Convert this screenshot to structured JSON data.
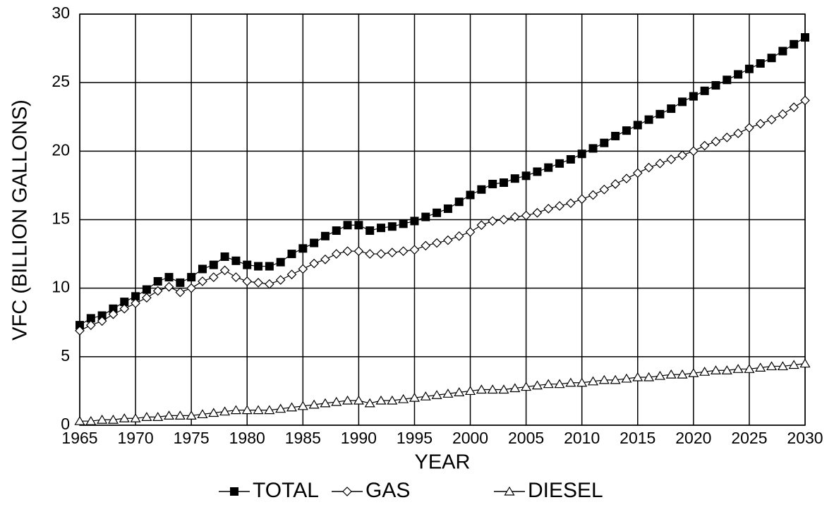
{
  "chart_data": {
    "type": "line",
    "xlabel": "YEAR",
    "ylabel": "VFC (BILLION GALLONS)",
    "x": [
      1965,
      1966,
      1967,
      1968,
      1969,
      1970,
      1971,
      1972,
      1973,
      1974,
      1975,
      1976,
      1977,
      1978,
      1979,
      1980,
      1981,
      1982,
      1983,
      1984,
      1985,
      1986,
      1987,
      1988,
      1989,
      1990,
      1991,
      1992,
      1993,
      1994,
      1995,
      1996,
      1997,
      1998,
      1999,
      2000,
      2001,
      2002,
      2003,
      2004,
      2005,
      2006,
      2007,
      2008,
      2009,
      2010,
      2011,
      2012,
      2013,
      2014,
      2015,
      2016,
      2017,
      2018,
      2019,
      2020,
      2021,
      2022,
      2023,
      2024,
      2025,
      2026,
      2027,
      2028,
      2029,
      2030
    ],
    "series": [
      {
        "name": "TOTAL",
        "color": "#000000",
        "marker": "square",
        "values": [
          7.3,
          7.8,
          8.0,
          8.5,
          9.0,
          9.4,
          9.9,
          10.5,
          10.8,
          10.4,
          10.8,
          11.4,
          11.7,
          12.3,
          12.0,
          11.7,
          11.6,
          11.6,
          11.9,
          12.5,
          12.9,
          13.3,
          13.8,
          14.2,
          14.6,
          14.6,
          14.2,
          14.4,
          14.5,
          14.7,
          14.9,
          15.2,
          15.5,
          15.8,
          16.3,
          16.8,
          17.2,
          17.6,
          17.7,
          18.0,
          18.2,
          18.5,
          18.8,
          19.1,
          19.4,
          19.8,
          20.2,
          20.6,
          21.1,
          21.5,
          21.9,
          22.3,
          22.7,
          23.1,
          23.6,
          24.0,
          24.4,
          24.8,
          25.2,
          25.6,
          26.0,
          26.4,
          26.8,
          27.3,
          27.8,
          28.3
        ]
      },
      {
        "name": "GAS",
        "color": "#000000",
        "marker": "diamond",
        "values": [
          6.9,
          7.3,
          7.6,
          8.1,
          8.5,
          8.9,
          9.3,
          9.8,
          10.1,
          9.7,
          10.0,
          10.5,
          10.8,
          11.3,
          10.8,
          10.5,
          10.4,
          10.3,
          10.6,
          11.0,
          11.4,
          11.8,
          12.1,
          12.5,
          12.7,
          12.7,
          12.5,
          12.5,
          12.6,
          12.7,
          12.8,
          13.1,
          13.3,
          13.5,
          13.8,
          14.1,
          14.6,
          14.9,
          15.0,
          15.2,
          15.3,
          15.5,
          15.8,
          16.0,
          16.2,
          16.5,
          16.8,
          17.2,
          17.6,
          18.0,
          18.4,
          18.8,
          19.1,
          19.4,
          19.7,
          20.0,
          20.4,
          20.7,
          21.0,
          21.3,
          21.7,
          22.0,
          22.3,
          22.7,
          23.2,
          23.7
        ]
      },
      {
        "name": "DIESEL",
        "color": "#000000",
        "marker": "triangle",
        "values": [
          0.3,
          0.3,
          0.4,
          0.4,
          0.5,
          0.5,
          0.6,
          0.6,
          0.7,
          0.7,
          0.7,
          0.8,
          0.9,
          1.0,
          1.1,
          1.1,
          1.1,
          1.1,
          1.2,
          1.3,
          1.4,
          1.5,
          1.6,
          1.7,
          1.8,
          1.8,
          1.6,
          1.8,
          1.8,
          1.9,
          2.0,
          2.1,
          2.2,
          2.3,
          2.4,
          2.5,
          2.6,
          2.6,
          2.6,
          2.7,
          2.8,
          2.9,
          3.0,
          3.0,
          3.1,
          3.1,
          3.2,
          3.3,
          3.3,
          3.4,
          3.5,
          3.5,
          3.6,
          3.7,
          3.7,
          3.8,
          3.9,
          4.0,
          4.0,
          4.1,
          4.1,
          4.2,
          4.3,
          4.3,
          4.4,
          4.5
        ]
      }
    ],
    "xlim": [
      1965,
      2030
    ],
    "xticks": [
      1965,
      1970,
      1975,
      1980,
      1985,
      1990,
      1995,
      2000,
      2005,
      2010,
      2015,
      2020,
      2025,
      2030
    ],
    "ylim": [
      0,
      30
    ],
    "yticks": [
      0,
      5,
      10,
      15,
      20,
      25,
      30
    ],
    "grid": true,
    "legend": "bottom"
  }
}
